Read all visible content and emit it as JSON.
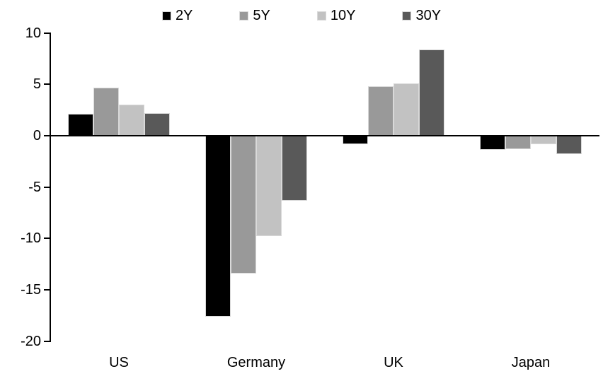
{
  "chart_data": {
    "type": "bar",
    "title": "",
    "xlabel": "",
    "ylabel": "",
    "categories": [
      "US",
      "Germany",
      "UK",
      "Japan"
    ],
    "series": [
      {
        "name": "2Y",
        "color": "#000000",
        "values": [
          2.1,
          -17.6,
          -0.8,
          -1.4
        ]
      },
      {
        "name": "5Y",
        "color": "#999999",
        "values": [
          4.7,
          -13.4,
          4.8,
          -1.3
        ]
      },
      {
        "name": "10Y",
        "color": "#c2c2c2",
        "values": [
          3.0,
          -9.8,
          5.1,
          -0.8
        ]
      },
      {
        "name": "30Y",
        "color": "#595959",
        "values": [
          2.2,
          -6.3,
          8.4,
          -1.8
        ]
      }
    ],
    "ylim": [
      -20,
      10
    ],
    "yticks": [
      10,
      5,
      0,
      -5,
      -10,
      -15,
      -20
    ],
    "grid": false,
    "legend_position": "top"
  },
  "style": {
    "background": "#ffffff",
    "axis_color": "#000000",
    "text_color": "#000000",
    "bar_border_color": "#d9d9d9"
  }
}
